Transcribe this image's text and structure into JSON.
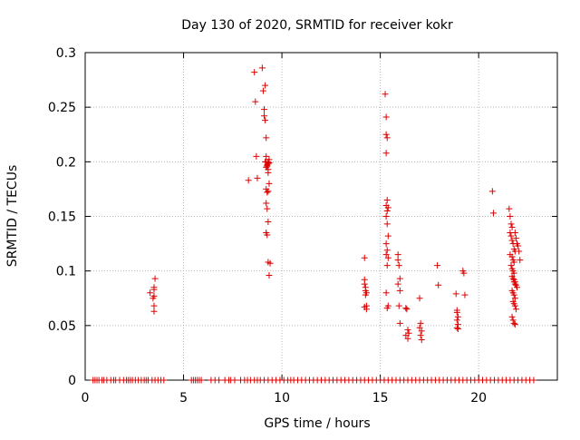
{
  "chart_data": {
    "type": "scatter",
    "title": "Day 130 of 2020, SRMTID for receiver kokr",
    "xlabel": "GPS time / hours",
    "ylabel": "SRMTID / TECUs",
    "xlim": [
      0,
      24
    ],
    "ylim": [
      0,
      0.3
    ],
    "xticks": [
      0,
      5,
      10,
      15,
      20
    ],
    "xtick_labels": [
      "0",
      "5",
      "10",
      "15",
      "20"
    ],
    "yticks": [
      0,
      0.05,
      0.1,
      0.15,
      0.2,
      0.25,
      0.3
    ],
    "ytick_labels": [
      "0",
      "0.05",
      "0.1",
      "0.15",
      "0.2",
      "0.25",
      "0.3"
    ],
    "grid": true,
    "marker": "+",
    "color": "#dd0000",
    "series": [
      {
        "x": [
          3.3,
          3.45,
          3.5,
          3.5,
          3.5,
          3.5,
          3.5,
          3.55,
          8.3,
          8.6,
          8.65,
          8.7,
          8.75,
          9.0,
          9.05,
          9.1,
          9.15,
          9.1,
          9.15,
          9.2,
          9.15,
          9.2,
          9.25,
          9.2,
          9.3,
          9.25,
          9.3,
          9.35,
          9.3,
          9.2,
          9.25,
          9.3,
          9.35,
          9.2,
          9.25,
          9.3,
          9.2,
          9.25,
          9.3,
          9.2,
          9.3,
          9.35,
          9.4,
          9.35,
          14.2,
          14.2,
          14.2,
          14.25,
          14.25,
          14.3,
          14.25,
          14.3,
          14.2,
          14.3,
          15.25,
          15.3,
          15.3,
          15.35,
          15.3,
          15.35,
          15.3,
          15.4,
          15.35,
          15.3,
          15.35,
          15.4,
          15.3,
          15.35,
          15.3,
          15.4,
          15.35,
          15.3,
          15.4,
          15.35,
          15.9,
          15.9,
          15.95,
          16.0,
          15.9,
          16.0,
          15.95,
          16.0,
          16.3,
          16.35,
          16.4,
          16.45,
          16.3,
          16.4,
          17.0,
          17.05,
          17.0,
          17.1,
          17.05,
          17.1,
          17.9,
          17.95,
          18.85,
          18.9,
          18.9,
          18.95,
          18.9,
          18.95,
          18.9,
          18.95,
          19.2,
          19.25,
          19.3,
          20.7,
          20.75,
          21.55,
          21.6,
          21.65,
          21.7,
          21.6,
          21.65,
          21.7,
          21.75,
          21.8,
          21.85,
          21.6,
          21.7,
          21.75,
          21.8,
          21.65,
          21.7,
          21.75,
          21.8,
          21.85,
          21.9,
          21.95,
          22.0,
          22.05,
          22.1,
          21.7,
          21.75,
          21.8,
          21.85,
          21.9,
          21.95,
          21.7,
          21.75,
          21.8,
          21.85,
          21.75,
          21.8,
          21.85,
          21.9,
          21.7,
          21.75,
          21.8,
          21.85,
          21.8,
          21.85
        ],
        "y": [
          0.08,
          0.075,
          0.085,
          0.083,
          0.077,
          0.068,
          0.063,
          0.093,
          0.183,
          0.282,
          0.255,
          0.205,
          0.185,
          0.286,
          0.265,
          0.248,
          0.27,
          0.242,
          0.238,
          0.222,
          0.2,
          0.195,
          0.197,
          0.175,
          0.173,
          0.172,
          0.2,
          0.202,
          0.19,
          0.162,
          0.157,
          0.145,
          0.18,
          0.135,
          0.133,
          0.108,
          0.2,
          0.196,
          0.198,
          0.205,
          0.193,
          0.199,
          0.107,
          0.096,
          0.112,
          0.092,
          0.088,
          0.085,
          0.082,
          0.08,
          0.078,
          0.068,
          0.067,
          0.065,
          0.262,
          0.241,
          0.225,
          0.222,
          0.208,
          0.165,
          0.16,
          0.158,
          0.155,
          0.15,
          0.143,
          0.132,
          0.125,
          0.119,
          0.115,
          0.112,
          0.105,
          0.08,
          0.068,
          0.066,
          0.115,
          0.11,
          0.105,
          0.093,
          0.088,
          0.082,
          0.068,
          0.052,
          0.066,
          0.065,
          0.046,
          0.043,
          0.041,
          0.038,
          0.075,
          0.052,
          0.048,
          0.045,
          0.041,
          0.037,
          0.105,
          0.087,
          0.079,
          0.064,
          0.062,
          0.058,
          0.055,
          0.051,
          0.048,
          0.047,
          0.1,
          0.098,
          0.078,
          0.173,
          0.153,
          0.157,
          0.15,
          0.143,
          0.14,
          0.135,
          0.132,
          0.128,
          0.125,
          0.12,
          0.118,
          0.115,
          0.113,
          0.11,
          0.108,
          0.105,
          0.102,
          0.1,
          0.098,
          0.135,
          0.13,
          0.125,
          0.123,
          0.118,
          0.11,
          0.095,
          0.093,
          0.09,
          0.088,
          0.087,
          0.085,
          0.082,
          0.08,
          0.078,
          0.075,
          0.072,
          0.07,
          0.068,
          0.065,
          0.058,
          0.055,
          0.052,
          0.051,
          0.092,
          0.09
        ]
      },
      {
        "x": [
          0.4,
          0.5,
          0.6,
          0.7,
          0.85,
          0.95,
          1.1,
          1.3,
          1.45,
          1.55,
          1.75,
          1.95,
          2.1,
          2.2,
          2.3,
          2.4,
          2.55,
          2.7,
          2.85,
          3.0,
          3.1,
          3.2,
          3.4,
          3.55,
          3.7,
          3.85,
          4.0,
          5.4,
          5.5,
          5.6,
          5.7,
          5.8,
          5.9,
          6.4,
          6.6,
          6.8,
          7.1,
          7.3,
          7.4,
          7.6,
          7.9,
          8.1,
          8.25,
          8.4,
          8.6,
          8.75,
          8.9,
          9.1,
          9.3,
          9.5,
          9.7,
          9.9,
          10.1,
          10.3,
          10.45,
          10.6,
          10.8,
          11.0,
          11.2,
          11.4,
          11.6,
          11.8,
          12.0,
          12.2,
          12.4,
          12.6,
          12.8,
          13.0,
          13.2,
          13.4,
          13.6,
          13.8,
          14.0,
          14.2,
          14.4,
          14.6,
          14.8,
          15.0,
          15.2,
          15.4,
          15.6,
          15.8,
          16.0,
          16.2,
          16.4,
          16.6,
          16.8,
          17.0,
          17.2,
          17.4,
          17.6,
          17.8,
          18.0,
          18.2,
          18.4,
          18.6,
          18.8,
          19.0,
          19.2,
          19.4,
          19.6,
          19.8,
          20.0,
          20.2,
          20.4,
          20.6,
          20.8,
          21.0,
          21.2,
          21.4,
          21.6,
          21.8,
          22.0,
          22.2,
          22.4,
          22.6,
          22.8
        ],
        "y": [
          0,
          0,
          0,
          0,
          0,
          0,
          0,
          0,
          0,
          0,
          0,
          0,
          0,
          0,
          0,
          0,
          0,
          0,
          0,
          0,
          0,
          0,
          0,
          0,
          0,
          0,
          0,
          0,
          0,
          0,
          0,
          0,
          0,
          0,
          0,
          0,
          0,
          0,
          0,
          0,
          0,
          0,
          0,
          0,
          0,
          0,
          0,
          0,
          0,
          0,
          0,
          0,
          0,
          0,
          0,
          0,
          0,
          0,
          0,
          0,
          0,
          0,
          0,
          0,
          0,
          0,
          0,
          0,
          0,
          0,
          0,
          0,
          0,
          0,
          0,
          0,
          0,
          0,
          0,
          0,
          0,
          0,
          0,
          0,
          0,
          0,
          0,
          0,
          0,
          0,
          0,
          0,
          0,
          0,
          0,
          0,
          0,
          0,
          0,
          0,
          0,
          0,
          0,
          0,
          0,
          0,
          0,
          0,
          0,
          0,
          0,
          0,
          0,
          0,
          0,
          0,
          0
        ]
      }
    ]
  }
}
